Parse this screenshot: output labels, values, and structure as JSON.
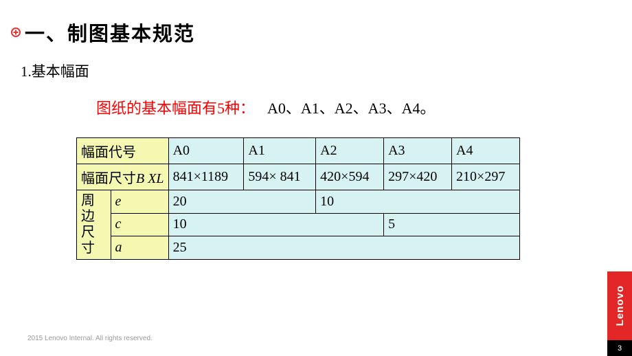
{
  "background_color": "#ffffff",
  "header": {
    "bullet": {
      "outer_fill": "#ffffff",
      "outer_stroke": "#dc3a3a",
      "inner_fill": "#dc3a3a"
    },
    "title": "一、制图基本规范"
  },
  "subtitle": "1.基本幅面",
  "intro": {
    "red": "图纸的基本幅面有5种：",
    "list": "A0、A1、A2、A3、A4。",
    "red_color": "#ff0000"
  },
  "table": {
    "header_bg": "#f4f8b0",
    "body_bg": "#d6f2f2",
    "border_color": "#000000",
    "row1": {
      "label": "幅面代号",
      "cells": [
        "A0",
        "A1",
        "A2",
        "A3",
        "A4"
      ]
    },
    "row2": {
      "label_main": "幅面尺寸",
      "label_unit": "B XL",
      "cells": [
        "841×1189",
        "594× 841",
        "420×594",
        "297×420",
        "210×297"
      ]
    },
    "group_label": "周边尺寸",
    "row_e": {
      "sym": "e",
      "v1": "20",
      "v2": "10"
    },
    "row_c": {
      "sym": "c",
      "v1": "10",
      "v2": "5"
    },
    "row_a": {
      "sym": "a",
      "v1": "25"
    }
  },
  "footer": "2015 Lenovo Internal. All rights reserved.",
  "brand": "Lenovo",
  "brand_bg": "#e32726",
  "page_no": "3",
  "page_no_bg": "#000000"
}
